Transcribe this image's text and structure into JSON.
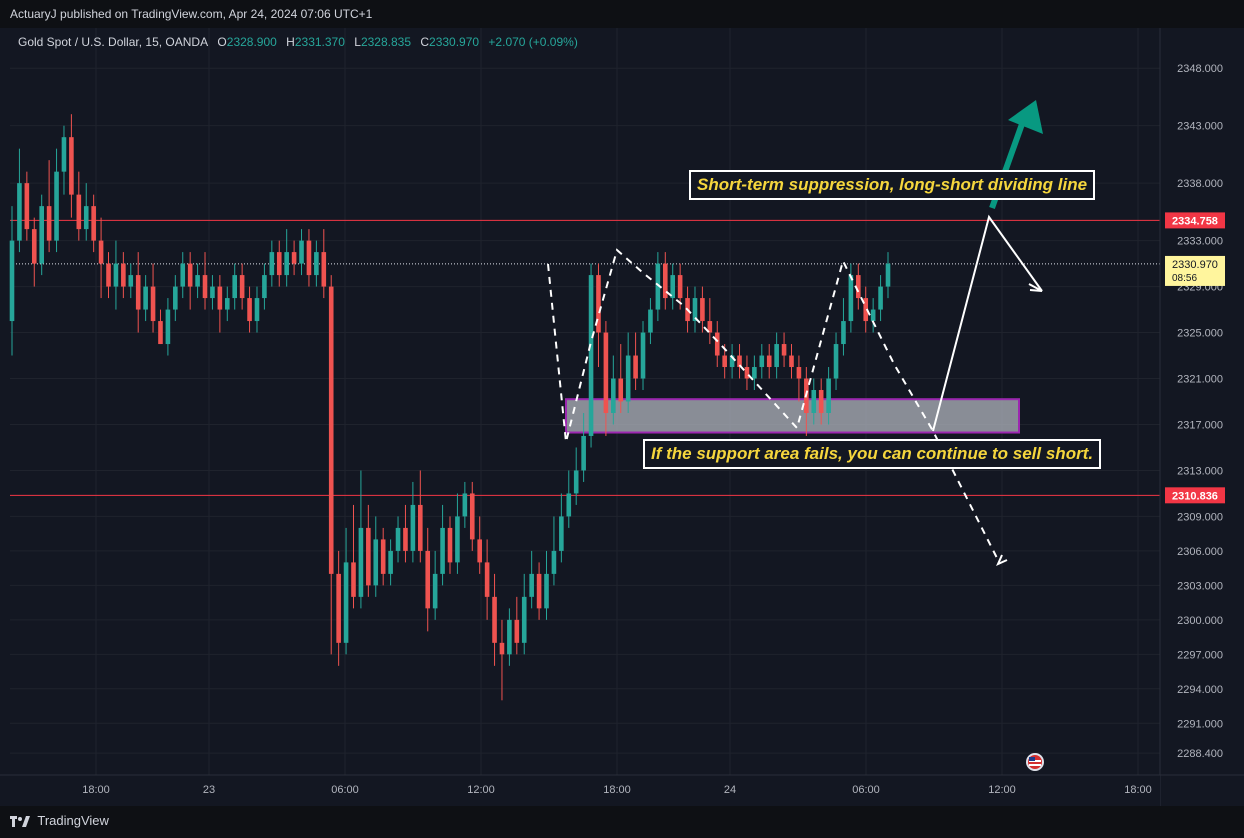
{
  "header": {
    "published_line": "ActuaryJ published on TradingView.com, Apr 24, 2024 07:06 UTC+1"
  },
  "legend": {
    "symbol": "Gold Spot / U.S. Dollar, 15, OANDA",
    "o_label": "O",
    "o_value": "2328.900",
    "h_label": "H",
    "h_value": "2331.370",
    "l_label": "L",
    "l_value": "2328.835",
    "c_label": "C",
    "c_value": "2330.970",
    "change": "+2.070 (+0.09%)"
  },
  "footer": {
    "brand": "TradingView"
  },
  "annotations": {
    "resistance_note": "Short-term suppression, long-short dividing line",
    "support_note": "If the support area fails, you can continue to sell short."
  },
  "colors": {
    "background": "#131722",
    "grid": "#1f232d",
    "up": "#26a69a",
    "down": "#ef5350",
    "level_line": "#f23645",
    "zone_fill": "#b2b5be",
    "zone_border": "#9c27b0",
    "callout_text": "#f5d63d",
    "big_arrow": "#089981",
    "price_label_bg": "#fff59d"
  },
  "chart_data": {
    "type": "candlestick",
    "symbol": "Gold Spot / U.S. Dollar",
    "interval": "15",
    "broker": "OANDA",
    "ylim": [
      2286.5,
      2351.5
    ],
    "y_ticks": [
      "2348.000",
      "2343.000",
      "2338.000",
      "2333.000",
      "2329.000",
      "2325.000",
      "2321.000",
      "2317.000",
      "2313.000",
      "2309.000",
      "2306.000",
      "2303.000",
      "2300.000",
      "2297.000",
      "2294.000",
      "2291.000",
      "2288.400"
    ],
    "x_ticks": [
      {
        "label": "18:00",
        "x": 96
      },
      {
        "label": "23",
        "x": 209
      },
      {
        "label": "06:00",
        "x": 345
      },
      {
        "label": "12:00",
        "x": 481
      },
      {
        "label": "18:00",
        "x": 617
      },
      {
        "label": "24",
        "x": 730
      },
      {
        "label": "06:00",
        "x": 866
      },
      {
        "label": "12:00",
        "x": 1002
      },
      {
        "label": "18:00",
        "x": 1138
      }
    ],
    "levels": [
      {
        "price": 2334.758,
        "label": "2334.758"
      },
      {
        "price": 2310.836,
        "label": "2310.836"
      }
    ],
    "last_price": {
      "price": 2330.97,
      "label": "2330.970",
      "countdown": "08:56"
    },
    "support_zone": {
      "top": 2319.2,
      "bottom": 2316.3
    },
    "candles": [
      [
        2326,
        2333,
        2323,
        2336
      ],
      [
        2333,
        2338,
        2332,
        2341
      ],
      [
        2338,
        2334,
        2333,
        2339
      ],
      [
        2334,
        2331,
        2329,
        2335
      ],
      [
        2331,
        2336,
        2330,
        2337
      ],
      [
        2336,
        2333,
        2332,
        2340
      ],
      [
        2333,
        2339,
        2332,
        2341
      ],
      [
        2339,
        2342,
        2337,
        2343
      ],
      [
        2342,
        2337,
        2335,
        2344
      ],
      [
        2337,
        2334,
        2333,
        2339
      ],
      [
        2334,
        2336,
        2333,
        2338
      ],
      [
        2336,
        2333,
        2332,
        2337
      ],
      [
        2333,
        2331,
        2328,
        2335
      ],
      [
        2331,
        2329,
        2328,
        2332
      ],
      [
        2329,
        2331,
        2327,
        2333
      ],
      [
        2331,
        2329,
        2328,
        2332
      ],
      [
        2329,
        2330,
        2328,
        2331
      ],
      [
        2330,
        2327,
        2325,
        2332
      ],
      [
        2327,
        2329,
        2326,
        2330
      ],
      [
        2329,
        2326,
        2325,
        2331
      ],
      [
        2326,
        2324,
        2324,
        2327
      ],
      [
        2324,
        2327,
        2323,
        2328
      ],
      [
        2327,
        2329,
        2326,
        2330
      ],
      [
        2329,
        2331,
        2328,
        2332
      ],
      [
        2331,
        2329,
        2327,
        2332
      ],
      [
        2329,
        2330,
        2328,
        2331
      ],
      [
        2330,
        2328,
        2327,
        2332
      ],
      [
        2328,
        2329,
        2327,
        2330
      ],
      [
        2329,
        2327,
        2325,
        2330
      ],
      [
        2327,
        2328,
        2326,
        2329
      ],
      [
        2328,
        2330,
        2327,
        2331
      ],
      [
        2330,
        2328,
        2327,
        2331
      ],
      [
        2328,
        2326,
        2325,
        2329
      ],
      [
        2326,
        2328,
        2325,
        2329
      ],
      [
        2328,
        2330,
        2327,
        2331
      ],
      [
        2330,
        2332,
        2329,
        2333
      ],
      [
        2332,
        2330,
        2329,
        2333
      ],
      [
        2330,
        2332,
        2329,
        2334
      ],
      [
        2332,
        2331,
        2330,
        2333
      ],
      [
        2331,
        2333,
        2330,
        2334
      ],
      [
        2333,
        2330,
        2329,
        2334
      ],
      [
        2330,
        2332,
        2329,
        2333
      ],
      [
        2332,
        2329,
        2328,
        2334
      ],
      [
        2329,
        2304,
        2297,
        2330
      ],
      [
        2304,
        2298,
        2296,
        2306
      ],
      [
        2298,
        2305,
        2297,
        2308
      ],
      [
        2305,
        2302,
        2301,
        2310
      ],
      [
        2302,
        2308,
        2301,
        2313
      ],
      [
        2308,
        2303,
        2302,
        2310
      ],
      [
        2303,
        2307,
        2302,
        2309
      ],
      [
        2307,
        2304,
        2303,
        2308
      ],
      [
        2304,
        2306,
        2303,
        2307
      ],
      [
        2306,
        2308,
        2305,
        2309
      ],
      [
        2308,
        2306,
        2305,
        2310
      ],
      [
        2306,
        2310,
        2305,
        2312
      ],
      [
        2310,
        2306,
        2305,
        2313
      ],
      [
        2306,
        2301,
        2299,
        2308
      ],
      [
        2301,
        2304,
        2300,
        2306
      ],
      [
        2304,
        2308,
        2303,
        2310
      ],
      [
        2308,
        2305,
        2304,
        2309
      ],
      [
        2305,
        2309,
        2304,
        2311
      ],
      [
        2309,
        2311,
        2308,
        2312
      ],
      [
        2311,
        2307,
        2306,
        2312
      ],
      [
        2307,
        2305,
        2304,
        2309
      ],
      [
        2305,
        2302,
        2300,
        2307
      ],
      [
        2302,
        2298,
        2296,
        2304
      ],
      [
        2298,
        2297,
        2293,
        2300
      ],
      [
        2297,
        2300,
        2296,
        2301
      ],
      [
        2300,
        2298,
        2297,
        2302
      ],
      [
        2298,
        2302,
        2297,
        2304
      ],
      [
        2302,
        2304,
        2301,
        2306
      ],
      [
        2304,
        2301,
        2300,
        2305
      ],
      [
        2301,
        2304,
        2300,
        2306
      ],
      [
        2304,
        2306,
        2303,
        2309
      ],
      [
        2306,
        2309,
        2305,
        2311
      ],
      [
        2309,
        2311,
        2308,
        2313
      ],
      [
        2311,
        2313,
        2310,
        2315
      ],
      [
        2313,
        2316,
        2312,
        2318
      ],
      [
        2316,
        2330,
        2315,
        2331
      ],
      [
        2330,
        2325,
        2322,
        2331
      ],
      [
        2325,
        2318,
        2316,
        2326
      ],
      [
        2318,
        2321,
        2317,
        2323
      ],
      [
        2321,
        2319,
        2318,
        2324
      ],
      [
        2319,
        2323,
        2318,
        2325
      ],
      [
        2323,
        2321,
        2320,
        2325
      ],
      [
        2321,
        2325,
        2320,
        2326
      ],
      [
        2325,
        2327,
        2324,
        2328
      ],
      [
        2327,
        2331,
        2326,
        2332
      ],
      [
        2331,
        2328,
        2327,
        2332
      ],
      [
        2328,
        2330,
        2327,
        2331
      ],
      [
        2330,
        2328,
        2327,
        2331
      ],
      [
        2328,
        2326,
        2325,
        2329
      ],
      [
        2326,
        2328,
        2325,
        2329
      ],
      [
        2328,
        2326,
        2325,
        2329
      ],
      [
        2326,
        2325,
        2324,
        2328
      ],
      [
        2325,
        2323,
        2322,
        2326
      ],
      [
        2323,
        2322,
        2321,
        2324
      ],
      [
        2322,
        2323,
        2321,
        2324
      ],
      [
        2323,
        2322,
        2321,
        2324
      ],
      [
        2322,
        2321,
        2320,
        2323
      ],
      [
        2321,
        2322,
        2320,
        2323
      ],
      [
        2322,
        2323,
        2321,
        2324
      ],
      [
        2323,
        2322,
        2321,
        2324
      ],
      [
        2322,
        2324,
        2321,
        2325
      ],
      [
        2324,
        2323,
        2322,
        2325
      ],
      [
        2323,
        2322,
        2321,
        2324
      ],
      [
        2322,
        2321,
        2319,
        2323
      ],
      [
        2321,
        2318,
        2316,
        2322
      ],
      [
        2318,
        2320,
        2317,
        2321
      ],
      [
        2320,
        2318,
        2317,
        2321
      ],
      [
        2318,
        2321,
        2317,
        2322
      ],
      [
        2321,
        2324,
        2320,
        2325
      ],
      [
        2324,
        2326,
        2323,
        2328
      ],
      [
        2326,
        2330,
        2325,
        2331
      ],
      [
        2330,
        2328,
        2327,
        2331
      ],
      [
        2328,
        2326,
        2325,
        2329
      ],
      [
        2326,
        2327,
        2325,
        2328
      ],
      [
        2327,
        2329,
        2326,
        2330
      ],
      [
        2329,
        2331,
        2328,
        2332
      ]
    ]
  }
}
